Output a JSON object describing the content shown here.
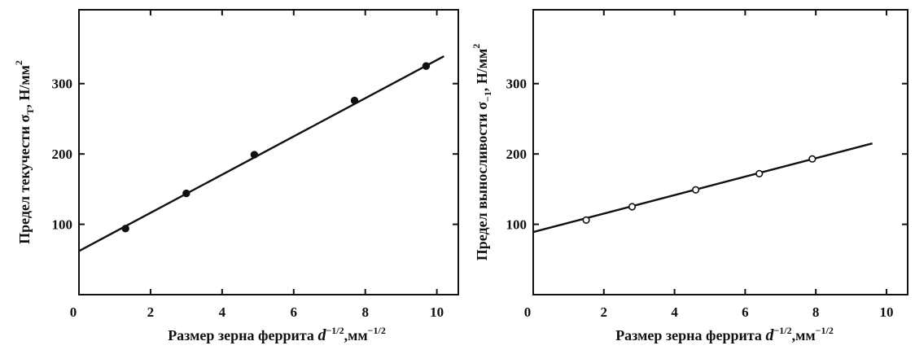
{
  "chart_data": [
    {
      "type": "scatter",
      "xlabel": "Размер зерна феррита d^-1/2, мм^-1/2",
      "xlabel_parts": {
        "main": "Размер зерна феррита",
        "var": "d",
        "var_exp": "−1/2",
        "unit": ",мм",
        "unit_exp": "−1/2"
      },
      "ylabel": "Предел текучести σT, Н/мм2",
      "ylabel_parts": {
        "main": "Предел  текучести σ",
        "sub": "T",
        "unit": ", Н/мм",
        "sup": "2"
      },
      "xlim": [
        0,
        10.6
      ],
      "ylim": [
        0,
        405
      ],
      "x_ticks": [
        0,
        2,
        4,
        6,
        8,
        10
      ],
      "y_ticks": [
        100,
        200,
        300
      ],
      "grid": false,
      "marker": "filled-circle",
      "points": [
        {
          "x": 1.3,
          "y": 94
        },
        {
          "x": 3.0,
          "y": 144
        },
        {
          "x": 4.9,
          "y": 199
        },
        {
          "x": 7.7,
          "y": 276
        },
        {
          "x": 9.7,
          "y": 325
        }
      ],
      "fit_line": {
        "x": [
          0,
          10.2
        ],
        "y": [
          62,
          339
        ]
      }
    },
    {
      "type": "scatter",
      "xlabel": "Размер зерна феррита d^-1/2, мм^-1/2",
      "xlabel_parts": {
        "main": "Размер зерна феррита",
        "var": "d",
        "var_exp": "−1/2",
        "unit": ",мм",
        "unit_exp": "−1/2"
      },
      "ylabel": "Предел выносливости σ-1, Н/мм2",
      "ylabel_parts": {
        "main": "Предел выносливости σ",
        "sub": "−1",
        "unit": ", Н/мм",
        "sup": "2"
      },
      "xlim": [
        0,
        10.6
      ],
      "ylim": [
        0,
        405
      ],
      "x_ticks": [
        0,
        2,
        4,
        6,
        8,
        10
      ],
      "y_ticks": [
        100,
        200,
        300
      ],
      "grid": false,
      "marker": "open-circle",
      "points": [
        {
          "x": 1.5,
          "y": 106
        },
        {
          "x": 2.8,
          "y": 125
        },
        {
          "x": 4.6,
          "y": 149
        },
        {
          "x": 6.4,
          "y": 172
        },
        {
          "x": 7.9,
          "y": 193
        }
      ],
      "fit_line": {
        "x": [
          0,
          9.6
        ],
        "y": [
          89,
          215
        ]
      }
    }
  ]
}
